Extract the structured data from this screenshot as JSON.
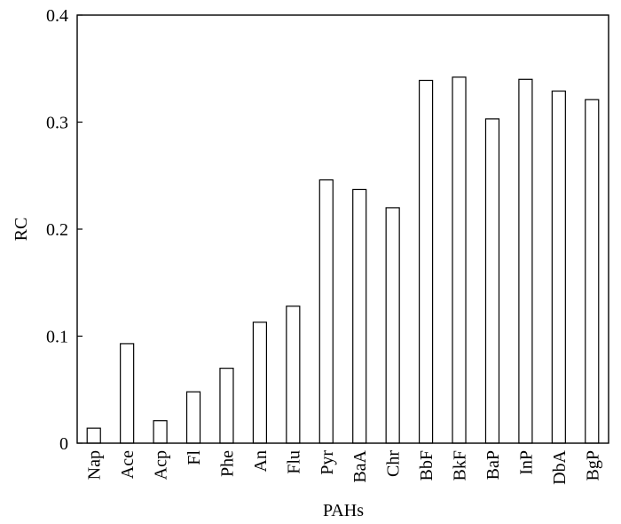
{
  "chart_data": {
    "type": "bar",
    "x_label": "PAHs",
    "y_label": "RC",
    "categories": [
      "Nap",
      "Ace",
      "Acp",
      "Fl",
      "Phe",
      "An",
      "Flu",
      "Pyr",
      "BaA",
      "Chr",
      "BbF",
      "BkF",
      "BaP",
      "InP",
      "DbA",
      "BgP"
    ],
    "values": [
      0.014,
      0.093,
      0.021,
      0.048,
      0.07,
      0.113,
      0.128,
      0.246,
      0.237,
      0.22,
      0.339,
      0.342,
      0.303,
      0.34,
      0.329,
      0.321
    ],
    "color": "#ffffff",
    "ylim": [
      0,
      0.4
    ],
    "yticks": [
      0,
      0.1,
      0.2,
      0.3,
      0.4
    ]
  }
}
